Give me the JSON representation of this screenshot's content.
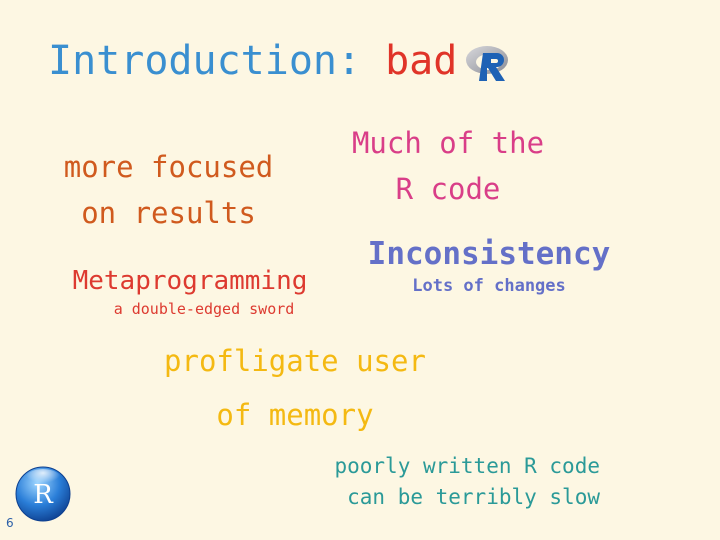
{
  "slide": {
    "title_prefix": "Introduction:",
    "title_word": "bad",
    "logo_icon": "r-logo-icon",
    "badge_icon": "r-sphere-icon",
    "badge_letter": "R",
    "page_number": "6"
  },
  "phrases": {
    "focused_line1": "more focused",
    "focused_line2": "on results",
    "muchof_line1": "Much of the",
    "muchof_line2": "R code",
    "meta_main": "Metaprogramming",
    "meta_sub": "a double-edged sword",
    "incons_main": "Inconsistency",
    "incons_sub": "Lots of changes",
    "profl_line1": "profligate user",
    "profl_line2": "of memory",
    "poorly_line1": "poorly written R code",
    "poorly_line2": "can be terribly slow"
  },
  "colors": {
    "background": "#fdf7e3",
    "title_blue": "#3a8fd0",
    "bad_red": "#e03428",
    "orange": "#d05a1e",
    "pink": "#d93e88",
    "red": "#dd3a30",
    "indigo": "#6470c8",
    "yellow": "#f4b912",
    "teal": "#2b9a98"
  }
}
